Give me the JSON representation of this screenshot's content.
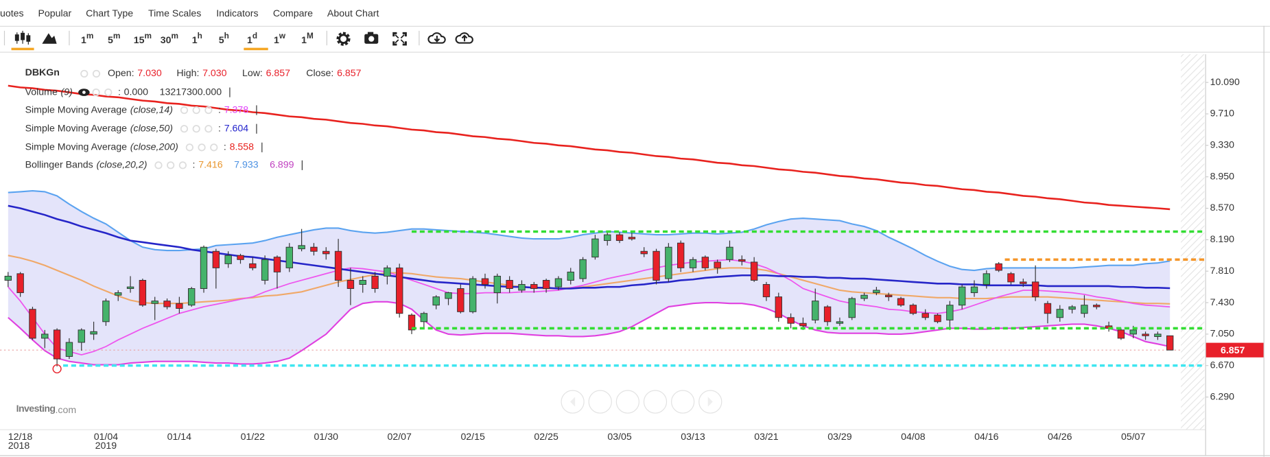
{
  "menu": [
    "uotes",
    "Popular",
    "Chart Type",
    "Time Scales",
    "Indicators",
    "Compare",
    "About Chart"
  ],
  "intervals": [
    {
      "n": "1",
      "u": "m"
    },
    {
      "n": "5",
      "u": "m"
    },
    {
      "n": "15",
      "u": "m"
    },
    {
      "n": "30",
      "u": "m"
    },
    {
      "n": "1",
      "u": "h"
    },
    {
      "n": "5",
      "u": "h"
    },
    {
      "n": "1",
      "u": "d",
      "active": true
    },
    {
      "n": "1",
      "u": "w"
    },
    {
      "n": "1",
      "u": "M"
    }
  ],
  "legend": {
    "symbol": "DBKGn",
    "fields": [
      {
        "label": "Open:",
        "value": "7.030"
      },
      {
        "label": "High:",
        "value": "7.030"
      },
      {
        "label": "Low:",
        "value": "6.857"
      },
      {
        "label": "Close:",
        "value": "6.857"
      }
    ],
    "field_color": "#e8202a",
    "separator": ":",
    "indicators": [
      {
        "name": "Volume",
        "params": "(9)",
        "visible": true,
        "values": [
          {
            "text": "0.000",
            "color": "#333333"
          },
          {
            "text": "13217300.000",
            "color": "#333333"
          }
        ]
      },
      {
        "name": "Simple Moving Average",
        "params": "(close,14)",
        "values": [
          {
            "text": "7.378",
            "color": "#e040fb"
          }
        ]
      },
      {
        "name": "Simple Moving Average",
        "params": "(close,50)",
        "values": [
          {
            "text": "7.604",
            "color": "#2222cc"
          }
        ]
      },
      {
        "name": "Simple Moving Average",
        "params": "(close,200)",
        "values": [
          {
            "text": "8.558",
            "color": "#e8221e"
          }
        ]
      },
      {
        "name": "Bollinger Bands",
        "params": "(close,20,2)",
        "values": [
          {
            "text": "7.416",
            "color": "#e8962e"
          },
          {
            "text": "7.933",
            "color": "#4a90e2"
          },
          {
            "text": "6.899",
            "color": "#c040c0"
          }
        ]
      }
    ]
  },
  "logo": {
    "brand": "Investing",
    "suffix": ".com"
  },
  "chart_data": {
    "type": "candlestick",
    "categories": [
      {
        "label": "12/18",
        "year": "2018"
      },
      null,
      null,
      null,
      null,
      null,
      null,
      null,
      {
        "label": "01/04",
        "year": "2019"
      },
      null,
      null,
      null,
      null,
      null,
      "01/14",
      null,
      null,
      null,
      null,
      null,
      "01/22",
      null,
      null,
      null,
      null,
      null,
      "01/30",
      null,
      null,
      null,
      null,
      null,
      "02/07",
      null,
      null,
      null,
      null,
      null,
      "02/15",
      null,
      null,
      null,
      null,
      null,
      "02/25",
      null,
      null,
      null,
      null,
      null,
      "03/05",
      null,
      null,
      null,
      null,
      null,
      "03/13",
      null,
      null,
      null,
      null,
      null,
      "03/21",
      null,
      null,
      null,
      null,
      null,
      "03/29",
      null,
      null,
      null,
      null,
      null,
      "04/08",
      null,
      null,
      null,
      null,
      null,
      "04/16",
      null,
      null,
      null,
      null,
      null,
      "04/26",
      null,
      null,
      null,
      null,
      null,
      "05/07",
      null,
      null,
      null
    ],
    "open": [
      7.7,
      7.78,
      7.35,
      7.0,
      7.1,
      6.78,
      6.95,
      7.05,
      7.2,
      7.52,
      7.6,
      7.7,
      7.42,
      7.45,
      7.42,
      7.4,
      7.6,
      8.05,
      7.9,
      8.0,
      7.9,
      7.7,
      7.98,
      7.85,
      8.08,
      8.1,
      8.05,
      8.05,
      7.7,
      7.65,
      7.75,
      7.75,
      7.85,
      7.28,
      7.2,
      7.4,
      7.48,
      7.6,
      7.32,
      7.72,
      7.55,
      7.7,
      7.58,
      7.65,
      7.7,
      7.62,
      7.7,
      7.72,
      7.98,
      8.18,
      8.25,
      8.22,
      8.05,
      8.05,
      7.72,
      8.15,
      7.85,
      7.98,
      7.92,
      7.95,
      7.95,
      7.92,
      7.65,
      7.5,
      7.25,
      7.18,
      7.22,
      7.38,
      7.18,
      7.25,
      7.48,
      7.55,
      7.52,
      7.48,
      7.4,
      7.3,
      7.28,
      7.22,
      7.4,
      7.55,
      7.65,
      7.9,
      7.78,
      7.68,
      7.68,
      7.42,
      7.25,
      7.35,
      7.3,
      7.4,
      7.15,
      7.1,
      7.05,
      7.05,
      7.02,
      7.03
    ],
    "high": [
      7.8,
      7.8,
      7.38,
      7.1,
      7.12,
      7.0,
      7.12,
      7.2,
      7.48,
      7.58,
      7.75,
      7.72,
      7.5,
      7.48,
      7.5,
      7.62,
      8.12,
      8.08,
      8.05,
      8.02,
      7.98,
      8.0,
      8.0,
      8.15,
      8.32,
      8.15,
      8.1,
      8.2,
      7.85,
      7.75,
      7.8,
      7.88,
      7.9,
      7.3,
      7.32,
      7.52,
      7.56,
      7.65,
      7.75,
      7.78,
      7.78,
      7.75,
      7.7,
      7.68,
      7.72,
      7.75,
      7.85,
      7.98,
      8.25,
      8.3,
      8.28,
      8.28,
      8.1,
      8.08,
      8.15,
      8.18,
      7.98,
      8.0,
      7.95,
      8.18,
      8.0,
      7.98,
      7.68,
      7.55,
      7.3,
      7.25,
      7.6,
      7.4,
      7.25,
      7.5,
      7.55,
      7.62,
      7.55,
      7.5,
      7.42,
      7.35,
      7.3,
      7.45,
      7.65,
      7.7,
      7.82,
      7.92,
      7.8,
      7.72,
      7.88,
      7.45,
      7.4,
      7.4,
      7.52,
      7.42,
      7.2,
      7.12,
      7.15,
      7.08,
      7.08,
      7.03
    ],
    "low": [
      7.62,
      7.5,
      6.98,
      6.88,
      6.66,
      6.75,
      6.85,
      6.98,
      7.15,
      7.45,
      7.55,
      7.38,
      7.22,
      7.35,
      7.3,
      7.38,
      7.55,
      7.6,
      7.85,
      7.9,
      7.82,
      7.65,
      7.6,
      7.8,
      8.05,
      8.0,
      7.95,
      7.62,
      7.4,
      7.55,
      7.55,
      7.65,
      7.25,
      7.05,
      7.12,
      7.35,
      7.4,
      7.3,
      7.3,
      7.6,
      7.42,
      7.55,
      7.55,
      7.55,
      7.55,
      7.58,
      7.65,
      7.68,
      7.95,
      8.12,
      8.15,
      8.18,
      7.98,
      7.65,
      7.68,
      7.8,
      7.8,
      7.82,
      7.78,
      7.92,
      7.88,
      7.68,
      7.45,
      7.2,
      7.12,
      7.1,
      7.18,
      7.15,
      7.15,
      7.22,
      7.45,
      7.52,
      7.45,
      7.38,
      7.28,
      7.22,
      7.18,
      7.1,
      7.35,
      7.5,
      7.6,
      7.8,
      7.65,
      7.62,
      7.45,
      7.18,
      7.2,
      7.3,
      7.25,
      7.35,
      7.08,
      6.98,
      7.0,
      6.98,
      6.98,
      6.857
    ],
    "close": [
      7.75,
      7.55,
      7.0,
      7.05,
      6.75,
      6.95,
      7.1,
      7.08,
      7.45,
      7.55,
      7.62,
      7.4,
      7.45,
      7.38,
      7.36,
      7.6,
      8.1,
      7.85,
      8.0,
      7.95,
      7.85,
      7.95,
      7.8,
      8.1,
      8.12,
      8.05,
      8.02,
      7.7,
      7.6,
      7.7,
      7.6,
      7.85,
      7.3,
      7.1,
      7.3,
      7.5,
      7.55,
      7.32,
      7.72,
      7.65,
      7.75,
      7.6,
      7.65,
      7.6,
      7.6,
      7.72,
      7.8,
      7.95,
      8.2,
      8.25,
      8.18,
      8.2,
      8.02,
      7.7,
      8.1,
      7.85,
      7.95,
      7.85,
      7.85,
      8.1,
      7.93,
      7.7,
      7.5,
      7.25,
      7.18,
      7.15,
      7.45,
      7.2,
      7.2,
      7.48,
      7.52,
      7.58,
      7.5,
      7.4,
      7.3,
      7.25,
      7.2,
      7.4,
      7.62,
      7.62,
      7.78,
      7.82,
      7.68,
      7.66,
      7.5,
      7.3,
      7.35,
      7.38,
      7.4,
      7.38,
      7.12,
      7.0,
      7.1,
      7.03,
      7.05,
      6.857
    ],
    "up_color": "#45b36b",
    "down_color": "#e8202a",
    "bollinger": {
      "fill": "#e4e4fa",
      "upper": {
        "color": "#5ba3f0",
        "values": [
          8.76,
          8.77,
          8.78,
          8.77,
          8.72,
          8.62,
          8.53,
          8.45,
          8.38,
          8.28,
          8.18,
          8.1,
          8.07,
          8.06,
          8.06,
          8.07,
          8.08,
          8.12,
          8.13,
          8.14,
          8.15,
          8.18,
          8.22,
          8.25,
          8.28,
          8.31,
          8.33,
          8.33,
          8.3,
          8.28,
          8.27,
          8.28,
          8.3,
          8.32,
          8.32,
          8.31,
          8.3,
          8.29,
          8.28,
          8.27,
          8.25,
          8.23,
          8.21,
          8.2,
          8.2,
          8.2,
          8.22,
          8.25,
          8.27,
          8.29,
          8.28,
          8.27,
          8.26,
          8.25,
          8.25,
          8.26,
          8.27,
          8.27,
          8.26,
          8.27,
          8.28,
          8.32,
          8.37,
          8.41,
          8.44,
          8.45,
          8.44,
          8.43,
          8.42,
          8.38,
          8.35,
          8.3,
          8.22,
          8.15,
          8.08,
          8.0,
          7.93,
          7.87,
          7.83,
          7.82,
          7.84,
          7.85,
          7.85,
          7.85,
          7.85,
          7.85,
          7.85,
          7.85,
          7.86,
          7.87,
          7.88,
          7.88,
          7.88,
          7.9,
          7.91,
          7.933
        ]
      },
      "middle": {
        "color": "#f0a868",
        "values": [
          8.0,
          7.97,
          7.93,
          7.88,
          7.82,
          7.76,
          7.7,
          7.63,
          7.57,
          7.51,
          7.46,
          7.43,
          7.42,
          7.42,
          7.42,
          7.43,
          7.44,
          7.45,
          7.46,
          7.48,
          7.49,
          7.51,
          7.52,
          7.54,
          7.56,
          7.6,
          7.64,
          7.68,
          7.71,
          7.74,
          7.77,
          7.79,
          7.79,
          7.78,
          7.76,
          7.74,
          7.73,
          7.72,
          7.7,
          7.68,
          7.66,
          7.64,
          7.62,
          7.61,
          7.6,
          7.6,
          7.61,
          7.62,
          7.64,
          7.66,
          7.68,
          7.7,
          7.72,
          7.74,
          7.76,
          7.78,
          7.8,
          7.82,
          7.84,
          7.85,
          7.85,
          7.84,
          7.82,
          7.78,
          7.74,
          7.7,
          7.66,
          7.62,
          7.58,
          7.56,
          7.55,
          7.54,
          7.53,
          7.52,
          7.51,
          7.5,
          7.49,
          7.49,
          7.48,
          7.48,
          7.48,
          7.49,
          7.5,
          7.5,
          7.5,
          7.5,
          7.49,
          7.48,
          7.47,
          7.46,
          7.45,
          7.44,
          7.43,
          7.42,
          7.42,
          7.416
        ]
      },
      "lower": {
        "color": "#e040e0",
        "values": [
          7.25,
          7.12,
          6.98,
          6.85,
          6.76,
          6.72,
          6.7,
          6.68,
          6.68,
          6.68,
          6.7,
          6.71,
          6.72,
          6.72,
          6.72,
          6.72,
          6.71,
          6.7,
          6.7,
          6.69,
          6.69,
          6.7,
          6.72,
          6.76,
          6.85,
          6.95,
          7.05,
          7.2,
          7.35,
          7.42,
          7.44,
          7.44,
          7.42,
          7.35,
          7.22,
          7.1,
          7.05,
          7.04,
          7.05,
          7.06,
          7.06,
          7.06,
          7.05,
          7.04,
          7.03,
          7.03,
          7.02,
          7.02,
          7.03,
          7.05,
          7.08,
          7.14,
          7.22,
          7.3,
          7.38,
          7.4,
          7.42,
          7.43,
          7.43,
          7.42,
          7.42,
          7.4,
          7.36,
          7.3,
          7.22,
          7.15,
          7.1,
          7.07,
          7.06,
          7.06,
          7.06,
          7.06,
          7.05,
          7.05,
          7.06,
          7.08,
          7.1,
          7.12,
          7.12,
          7.11,
          7.11,
          7.12,
          7.12,
          7.13,
          7.14,
          7.15,
          7.16,
          7.17,
          7.17,
          7.15,
          7.12,
          7.08,
          7.02,
          6.96,
          6.93,
          6.899
        ]
      }
    },
    "sma": [
      {
        "color": "#ee55ee",
        "values": [
          7.62,
          7.45,
          7.25,
          7.05,
          6.88,
          6.84,
          6.8,
          6.84,
          6.9,
          6.98,
          7.05,
          7.12,
          7.18,
          7.24,
          7.3,
          7.34,
          7.38,
          7.41,
          7.44,
          7.47,
          7.5,
          7.56,
          7.61,
          7.66,
          7.7,
          7.74,
          7.78,
          7.82,
          7.85,
          7.84,
          7.82,
          7.8,
          7.75,
          7.7,
          7.65,
          7.6,
          7.55,
          7.54,
          7.54,
          7.55,
          7.55,
          7.55,
          7.56,
          7.56,
          7.57,
          7.58,
          7.61,
          7.64,
          7.68,
          7.72,
          7.75,
          7.78,
          7.82,
          7.85,
          7.88,
          7.9,
          7.92,
          7.93,
          7.94,
          7.95,
          7.93,
          7.9,
          7.85,
          7.78,
          7.7,
          7.6,
          7.55,
          7.5,
          7.45,
          7.42,
          7.4,
          7.38,
          7.35,
          7.34,
          7.32,
          7.31,
          7.3,
          7.32,
          7.35,
          7.4,
          7.45,
          7.5,
          7.54,
          7.58,
          7.58,
          7.57,
          7.56,
          7.55,
          7.53,
          7.5,
          7.48,
          7.45,
          7.42,
          7.4,
          7.39,
          7.378
        ]
      },
      {
        "color": "#2525c8",
        "values": [
          8.6,
          8.57,
          8.53,
          8.49,
          8.44,
          8.4,
          8.35,
          8.31,
          8.27,
          8.22,
          8.18,
          8.16,
          8.14,
          8.12,
          8.1,
          8.07,
          8.05,
          8.03,
          8.01,
          7.99,
          7.98,
          7.96,
          7.94,
          7.92,
          7.9,
          7.88,
          7.86,
          7.84,
          7.82,
          7.8,
          7.78,
          7.76,
          7.74,
          7.72,
          7.7,
          7.68,
          7.67,
          7.66,
          7.65,
          7.64,
          7.63,
          7.62,
          7.62,
          7.61,
          7.61,
          7.6,
          7.6,
          7.61,
          7.61,
          7.62,
          7.62,
          7.64,
          7.65,
          7.67,
          7.68,
          7.7,
          7.71,
          7.73,
          7.74,
          7.75,
          7.76,
          7.76,
          7.76,
          7.75,
          7.75,
          7.74,
          7.74,
          7.73,
          7.73,
          7.72,
          7.72,
          7.71,
          7.7,
          7.69,
          7.68,
          7.67,
          7.66,
          7.66,
          7.65,
          7.65,
          7.64,
          7.64,
          7.64,
          7.64,
          7.64,
          7.63,
          7.63,
          7.63,
          7.63,
          7.63,
          7.63,
          7.62,
          7.62,
          7.61,
          7.61,
          7.604
        ]
      },
      {
        "color": "#e8221e",
        "values": [
          10.05,
          10.03,
          10.02,
          10.0,
          9.99,
          9.97,
          9.95,
          9.94,
          9.92,
          9.91,
          9.89,
          9.87,
          9.86,
          9.84,
          9.83,
          9.81,
          9.8,
          9.78,
          9.76,
          9.75,
          9.73,
          9.72,
          9.7,
          9.68,
          9.67,
          9.65,
          9.64,
          9.62,
          9.6,
          9.59,
          9.57,
          9.56,
          9.54,
          9.52,
          9.51,
          9.49,
          9.48,
          9.46,
          9.44,
          9.43,
          9.41,
          9.4,
          9.38,
          9.36,
          9.35,
          9.33,
          9.32,
          9.3,
          9.28,
          9.27,
          9.25,
          9.24,
          9.22,
          9.2,
          9.19,
          9.17,
          9.16,
          9.14,
          9.12,
          9.11,
          9.09,
          9.08,
          9.06,
          9.04,
          9.03,
          9.01,
          9.0,
          8.98,
          8.96,
          8.95,
          8.93,
          8.92,
          8.9,
          8.88,
          8.87,
          8.85,
          8.84,
          8.82,
          8.8,
          8.79,
          8.77,
          8.76,
          8.74,
          8.72,
          8.71,
          8.69,
          8.68,
          8.66,
          8.64,
          8.63,
          8.61,
          8.6,
          8.59,
          8.58,
          8.57,
          8.558
        ]
      }
    ],
    "drawings": [
      {
        "color": "#33dd33",
        "value": 8.288
      },
      {
        "color": "#33dd33",
        "value": 7.12
      },
      {
        "color": "#f5962a",
        "value": 7.95
      },
      {
        "color": "#3ee6f0",
        "value": 6.67
      }
    ],
    "last_price": 6.857,
    "last_price_color": "#e8202a",
    "ylim": [
      5.9,
      10.43
    ],
    "yticks": [
      {
        "value": 10.09,
        "label": "10.090"
      },
      {
        "value": 9.71,
        "label": "9.710"
      },
      {
        "value": 9.33,
        "label": "9.330"
      },
      {
        "value": 8.95,
        "label": "8.950"
      },
      {
        "value": 8.57,
        "label": "8.570"
      },
      {
        "value": 8.19,
        "label": "8.190"
      },
      {
        "value": 7.81,
        "label": "7.810"
      },
      {
        "value": 7.43,
        "label": "7.430"
      },
      {
        "value": 7.05,
        "label": "7.050"
      },
      {
        "value": 6.67,
        "label": "6.670"
      },
      {
        "value": 6.29,
        "label": "6.290"
      }
    ],
    "grid": false
  }
}
